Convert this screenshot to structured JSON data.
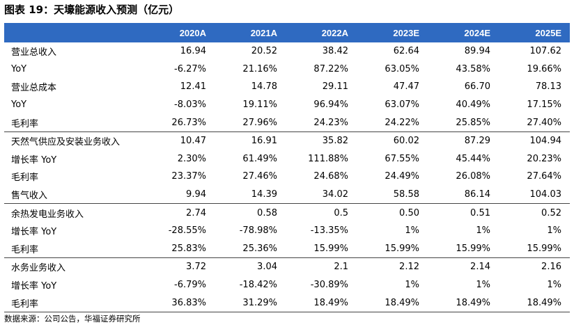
{
  "title": "图表 19：天壕能源收入预测（亿元）",
  "source": "数据来源：公司公告，华福证券研究所",
  "columns": [
    "",
    "2020A",
    "2021A",
    "2022A",
    "2023E",
    "2024E",
    "2025E"
  ],
  "groups": [
    {
      "rows": [
        {
          "label": "营业总收入",
          "values": [
            "16.94",
            "20.52",
            "38.42",
            "62.64",
            "89.94",
            "107.62"
          ]
        },
        {
          "label": "YoY",
          "values": [
            "-6.27%",
            "21.16%",
            "87.22%",
            "63.05%",
            "43.58%",
            "19.66%"
          ]
        },
        {
          "label": "营业总成本",
          "values": [
            "12.41",
            "14.78",
            "29.11",
            "47.47",
            "66.70",
            "78.13"
          ]
        },
        {
          "label": "YoY",
          "values": [
            "-8.03%",
            "19.11%",
            "96.94%",
            "63.07%",
            "40.49%",
            "17.15%"
          ]
        },
        {
          "label": "毛利率",
          "values": [
            "26.73%",
            "27.96%",
            "24.23%",
            "24.22%",
            "25.85%",
            "27.40%"
          ]
        }
      ]
    },
    {
      "rows": [
        {
          "label": "天然气供应及安装业务收入",
          "values": [
            "10.47",
            "16.91",
            "35.82",
            "60.02",
            "87.29",
            "104.94"
          ]
        },
        {
          "label": "增长率 YoY",
          "values": [
            "2.30%",
            "61.49%",
            "111.88%",
            "67.55%",
            "45.44%",
            "20.23%"
          ]
        },
        {
          "label": "毛利率",
          "values": [
            "23.37%",
            "27.46%",
            "24.68%",
            "24.49%",
            "26.08%",
            "27.64%"
          ]
        },
        {
          "label": "售气收入",
          "values": [
            "9.94",
            "14.39",
            "34.02",
            "58.58",
            "86.14",
            "104.03"
          ]
        }
      ]
    },
    {
      "rows": [
        {
          "label": "余热发电业务收入",
          "values": [
            "2.74",
            "0.58",
            "0.5",
            "0.50",
            "0.51",
            "0.52"
          ]
        },
        {
          "label": "增长率 YoY",
          "values": [
            "-28.55%",
            "-78.98%",
            "-13.35%",
            "1%",
            "1%",
            "1%"
          ]
        },
        {
          "label": "毛利率",
          "values": [
            "25.83%",
            "25.36%",
            "15.99%",
            "15.99%",
            "15.99%",
            "15.99%"
          ]
        }
      ]
    },
    {
      "rows": [
        {
          "label": "水务业务收入",
          "values": [
            "3.72",
            "3.04",
            "2.1",
            "2.12",
            "2.14",
            "2.16"
          ]
        },
        {
          "label": "增长率 YoY",
          "values": [
            "-6.79%",
            "-18.42%",
            "-30.89%",
            "1%",
            "1%",
            "1%"
          ]
        },
        {
          "label": "毛利率",
          "values": [
            "36.83%",
            "31.29%",
            "18.49%",
            "18.49%",
            "18.49%",
            "18.49%"
          ]
        }
      ]
    }
  ],
  "colors": {
    "header_bg": "#2f6ac1",
    "header_text": "#ffffff",
    "rule": "#444444"
  }
}
